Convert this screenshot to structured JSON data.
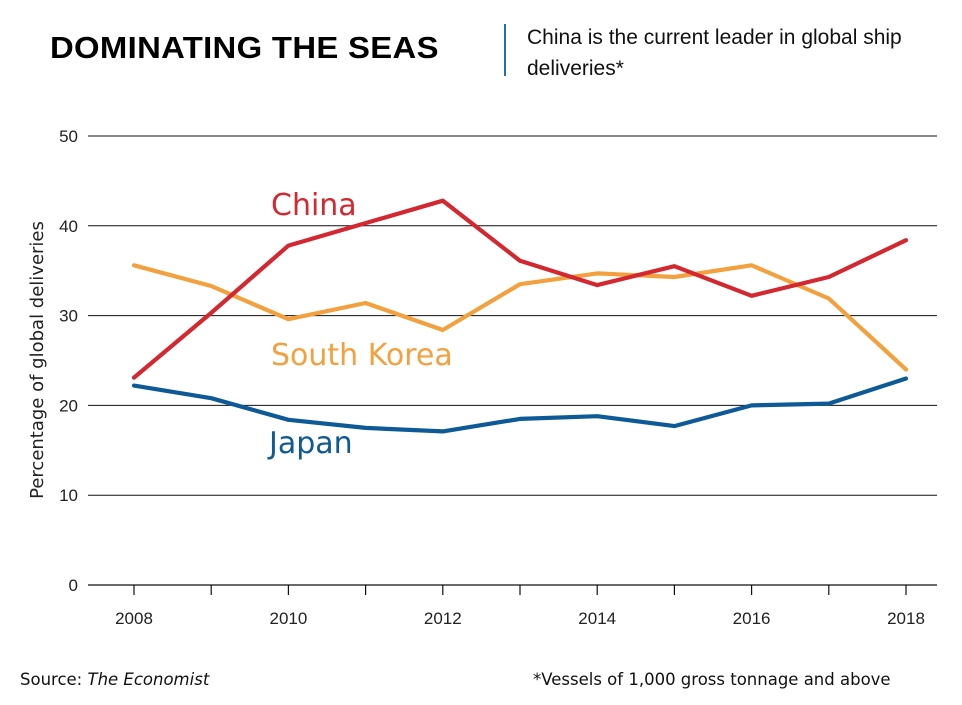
{
  "header": {
    "title": "DOMINATING THE SEAS",
    "subtitle": "China is the current leader in global ship deliveries*"
  },
  "footer": {
    "source_label": "Source:",
    "source_name": "The Economist",
    "footnote": "*Vessels of 1,000 gross tonnage and above"
  },
  "chart_data": {
    "type": "line",
    "title": "DOMINATING THE SEAS",
    "subtitle": "China is the current leader in global ship deliveries*",
    "xlabel": "",
    "ylabel": "Percentage of global deliveries",
    "x": [
      2008,
      2009,
      2010,
      2011,
      2012,
      2013,
      2014,
      2015,
      2016,
      2017,
      2018
    ],
    "xticks": [
      "2008",
      "2010",
      "2012",
      "2014",
      "2016",
      "2018"
    ],
    "yticks": [
      "0",
      "10",
      "20",
      "30",
      "40",
      "50"
    ],
    "ylim": [
      0,
      50
    ],
    "xlim": [
      2008,
      2018
    ],
    "grid": "horizontal",
    "legend": "inline labels",
    "series": [
      {
        "name": "China",
        "color": "#d3282f",
        "values": [
          23.1,
          30.3,
          37.8,
          40.3,
          42.8,
          36.1,
          33.4,
          35.5,
          32.2,
          34.3,
          38.4
        ]
      },
      {
        "name": "South Korea",
        "color": "#f2a13e",
        "values": [
          35.6,
          33.3,
          29.6,
          31.4,
          28.4,
          33.5,
          34.7,
          34.3,
          35.6,
          31.9,
          24.0
        ]
      },
      {
        "name": "Japan",
        "color": "#0e5a96",
        "values": [
          22.2,
          20.8,
          18.4,
          17.5,
          17.1,
          18.5,
          18.8,
          17.7,
          20.0,
          20.2,
          23.0
        ]
      }
    ]
  }
}
